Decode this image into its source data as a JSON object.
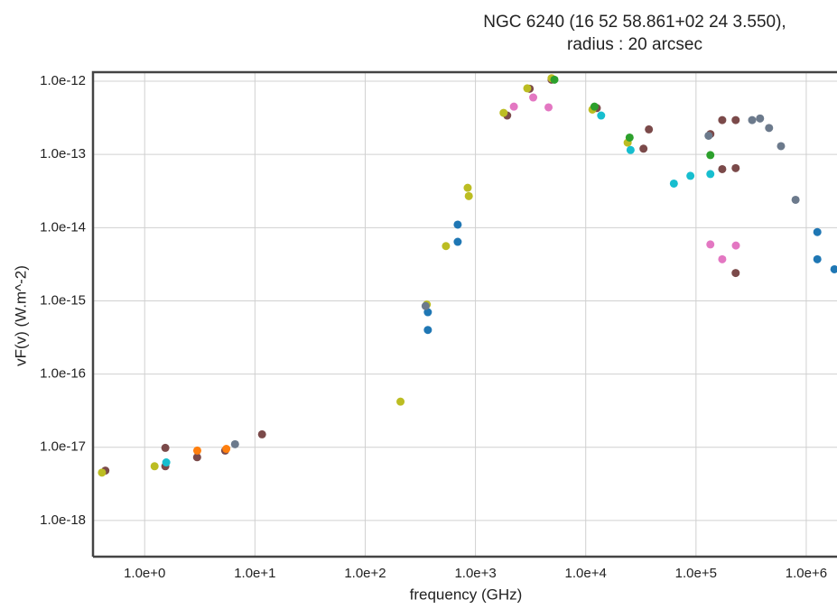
{
  "chart_data": {
    "type": "scatter",
    "title": [
      "NGC 6240 (16 52 58.861+02 24 3.550),",
      "radius : 20 arcsec"
    ],
    "xlabel": "frequency (GHz)",
    "ylabel": "vF(v) (W.m^-2)",
    "xscale": "log",
    "yscale": "log",
    "grid": true,
    "xlim": [
      0.34,
      1900000.0
    ],
    "ylim": [
      3.2e-19,
      1.33e-12
    ],
    "xticks": [
      {
        "value": 1,
        "label": "1.0e+0"
      },
      {
        "value": 10,
        "label": "1.0e+1"
      },
      {
        "value": 100,
        "label": "1.0e+2"
      },
      {
        "value": 1000,
        "label": "1.0e+3"
      },
      {
        "value": 10000,
        "label": "1.0e+4"
      },
      {
        "value": 100000,
        "label": "1.0e+5"
      },
      {
        "value": 1000000,
        "label": "1.0e+6"
      }
    ],
    "yticks": [
      {
        "value": 1e-18,
        "label": "1.0e-18"
      },
      {
        "value": 1e-17,
        "label": "1.0e-17"
      },
      {
        "value": 1e-16,
        "label": "1.0e-16"
      },
      {
        "value": 1e-15,
        "label": "1.0e-15"
      },
      {
        "value": 1e-14,
        "label": "1.0e-14"
      },
      {
        "value": 1e-13,
        "label": "1.0e-13"
      },
      {
        "value": 1e-12,
        "label": "1.0e-12"
      }
    ],
    "series": [
      {
        "color": "#7b4a4a",
        "x": [
          0.44,
          1.54,
          1.54,
          2.99,
          5.37,
          11.6,
          1940,
          3100,
          4900,
          12600,
          33400,
          37400,
          135000,
          173000,
          173000,
          229000,
          229000,
          229000
        ],
        "values": [
          4.8e-18,
          9.8e-18,
          5.5e-18,
          7.3e-18,
          9e-18,
          1.5e-17,
          3.4e-13,
          7.9e-13,
          1.05e-12,
          4.3e-13,
          1.2e-13,
          2.2e-13,
          1.9e-13,
          2.95e-13,
          6.3e-14,
          2.95e-13,
          6.5e-14,
          2.4e-15
        ]
      },
      {
        "color": "#1f77b4",
        "x": [
          370,
          370,
          690,
          690,
          1260000.0,
          1260000.0,
          1800000.0
        ],
        "values": [
          4e-16,
          7e-16,
          1.1e-14,
          6.4e-15,
          8.7e-15,
          3.7e-15,
          2.7e-15
        ]
      },
      {
        "color": "#bcbd22",
        "x": [
          0.41,
          1.23,
          209,
          362,
          540,
          870,
          850,
          1800,
          2950,
          4900,
          11500,
          24000
        ],
        "values": [
          4.5e-18,
          5.5e-18,
          4.2e-17,
          8.9e-16,
          5.6e-15,
          2.7e-14,
          3.5e-14,
          3.7e-13,
          8e-13,
          1.1e-12,
          4.1e-13,
          1.45e-13
        ]
      },
      {
        "color": "#6c7a8c",
        "x": [
          353,
          6.6,
          130000,
          323000,
          381000,
          460000,
          590000,
          800000
        ],
        "values": [
          8.5e-16,
          1.1e-17,
          1.8e-13,
          2.95e-13,
          3.1e-13,
          2.3e-13,
          1.3e-13,
          2.4e-14
        ]
      },
      {
        "color": "#2ca02c",
        "x": [
          12000,
          25000,
          135000,
          5200
        ],
        "values": [
          4.5e-13,
          1.7e-13,
          9.8e-14,
          1.05e-12
        ]
      },
      {
        "color": "#17becf",
        "x": [
          1.57,
          13800,
          25500,
          63000,
          89000,
          135000
        ],
        "values": [
          6.2e-18,
          3.4e-13,
          1.15e-13,
          4e-14,
          5.1e-14,
          5.4e-14
        ]
      },
      {
        "color": "#e377c2",
        "x": [
          2230,
          3340,
          4600,
          135000,
          173000,
          230000
        ],
        "values": [
          4.5e-13,
          6e-13,
          4.4e-13,
          5.9e-15,
          3.7e-15,
          5.7e-15
        ]
      },
      {
        "color": "#ff7f0e",
        "x": [
          3,
          5.5
        ],
        "values": [
          9e-18,
          9.5e-18
        ]
      }
    ]
  }
}
